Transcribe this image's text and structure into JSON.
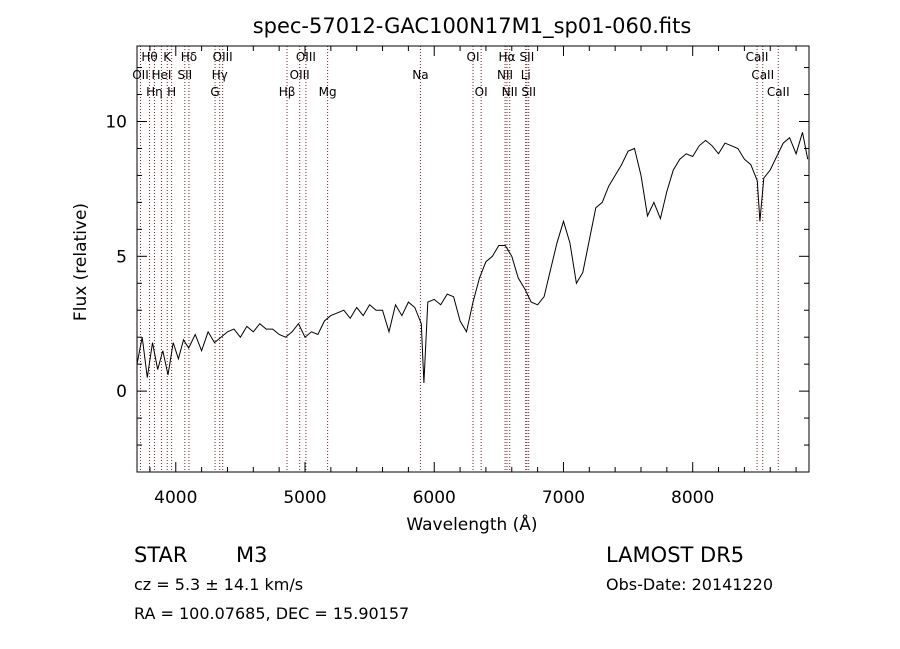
{
  "chart_data": {
    "type": "line",
    "title": "spec-57012-GAC100N17M1_sp01-060.fits",
    "xlabel": "Wavelength (Å)",
    "ylabel": "Flux (relative)",
    "xlim": [
      3700,
      8900
    ],
    "ylim": [
      -3,
      12.8
    ],
    "xticks": [
      4000,
      5000,
      6000,
      7000,
      8000
    ],
    "xtick_labels": [
      "4000",
      "5000",
      "6000",
      "7000",
      "8000"
    ],
    "yticks": [
      0,
      5,
      10
    ],
    "ytick_labels": [
      "0",
      "5",
      "10"
    ],
    "grid": false,
    "series": [
      {
        "x": [
          3700,
          3740,
          3780,
          3820,
          3860,
          3900,
          3940,
          3980,
          4020,
          4060,
          4100,
          4150,
          4200,
          4250,
          4300,
          4350,
          4400,
          4450,
          4500,
          4550,
          4600,
          4650,
          4700,
          4750,
          4800,
          4850,
          4900,
          4950,
          5000,
          5050,
          5100,
          5150,
          5200,
          5250,
          5300,
          5350,
          5400,
          5450,
          5500,
          5550,
          5600,
          5650,
          5700,
          5750,
          5800,
          5850,
          5900,
          5920,
          5950,
          6000,
          6050,
          6100,
          6150,
          6200,
          6250,
          6300,
          6350,
          6400,
          6450,
          6500,
          6550,
          6600,
          6650,
          6700,
          6750,
          6800,
          6850,
          6900,
          6950,
          7000,
          7050,
          7100,
          7150,
          7200,
          7250,
          7300,
          7350,
          7400,
          7450,
          7500,
          7550,
          7600,
          7650,
          7700,
          7750,
          7800,
          7850,
          7900,
          7950,
          8000,
          8050,
          8100,
          8150,
          8200,
          8250,
          8300,
          8350,
          8400,
          8450,
          8500,
          8520,
          8550,
          8600,
          8650,
          8700,
          8750,
          8800,
          8850,
          8890
        ],
        "y": [
          1.0,
          2.0,
          0.5,
          1.8,
          0.8,
          1.5,
          0.6,
          1.8,
          1.2,
          1.9,
          1.6,
          2.1,
          1.5,
          2.2,
          1.8,
          2.0,
          2.2,
          2.3,
          2.0,
          2.4,
          2.2,
          2.5,
          2.3,
          2.3,
          2.1,
          2.0,
          2.2,
          2.5,
          2.0,
          2.2,
          2.1,
          2.6,
          2.8,
          2.9,
          3.0,
          2.7,
          3.1,
          2.8,
          3.2,
          3.0,
          3.0,
          2.2,
          3.2,
          2.8,
          3.3,
          3.1,
          2.5,
          0.3,
          3.3,
          3.4,
          3.2,
          3.6,
          3.5,
          2.6,
          2.2,
          3.3,
          4.2,
          4.8,
          5.0,
          5.4,
          5.4,
          5.0,
          4.2,
          3.8,
          3.3,
          3.2,
          3.5,
          4.5,
          5.5,
          6.3,
          5.5,
          4.0,
          4.4,
          5.6,
          6.8,
          7.0,
          7.6,
          8.0,
          8.4,
          8.9,
          9.0,
          8.0,
          6.5,
          7.0,
          6.4,
          7.4,
          8.2,
          8.6,
          8.8,
          8.7,
          9.1,
          9.3,
          9.1,
          8.8,
          9.2,
          9.1,
          9.0,
          8.6,
          8.4,
          7.8,
          6.3,
          7.9,
          8.2,
          8.7,
          9.2,
          9.4,
          8.8,
          9.6,
          8.6
        ]
      }
    ],
    "lines": [
      {
        "label": "OII",
        "x": 3727,
        "row": 2
      },
      {
        "label": "Hθ",
        "x": 3797,
        "row": 1
      },
      {
        "label": "Hη",
        "x": 3835,
        "row": 3
      },
      {
        "label": "HeI",
        "x": 3889,
        "row": 2
      },
      {
        "label": "K",
        "x": 3934,
        "row": 1
      },
      {
        "label": "H",
        "x": 3968,
        "row": 3
      },
      {
        "label": "Hδ",
        "x": 4102,
        "row": 1
      },
      {
        "label": "SII",
        "x": 4070,
        "row": 2
      },
      {
        "label": "OIII",
        "x": 4363,
        "row": 1
      },
      {
        "label": "Hγ",
        "x": 4340,
        "row": 2
      },
      {
        "label": "G",
        "x": 4304,
        "row": 3
      },
      {
        "label": "Hβ",
        "x": 4861,
        "row": 3
      },
      {
        "label": "OIII",
        "x": 5007,
        "row": 1
      },
      {
        "label": "OIII",
        "x": 4959,
        "row": 2
      },
      {
        "label": "Mg",
        "x": 5175,
        "row": 3
      },
      {
        "label": "Na",
        "x": 5893,
        "row": 2
      },
      {
        "label": "OI",
        "x": 6300,
        "row": 1
      },
      {
        "label": "OI",
        "x": 6363,
        "row": 3
      },
      {
        "label": "Hα",
        "x": 6563,
        "row": 1
      },
      {
        "label": "NII",
        "x": 6548,
        "row": 2
      },
      {
        "label": "NII",
        "x": 6584,
        "row": 3
      },
      {
        "label": "SII",
        "x": 6717,
        "row": 1
      },
      {
        "label": "Li",
        "x": 6708,
        "row": 2
      },
      {
        "label": "SII",
        "x": 6731,
        "row": 3
      },
      {
        "label": "CaII",
        "x": 8498,
        "row": 1
      },
      {
        "label": "CaII",
        "x": 8542,
        "row": 2
      },
      {
        "label": "CaII",
        "x": 8662,
        "row": 3
      }
    ]
  },
  "info": {
    "class": "STAR",
    "subclass": "M3",
    "survey": "LAMOST DR5",
    "cz": "cz = 5.3 ± 14.1 km/s",
    "obs_date": "Obs-Date: 20141220",
    "coords": "RA = 100.07685, DEC =  15.90157"
  },
  "colors": {
    "spectrum": "#000000",
    "line_markers": "#8b1a1a",
    "axes": "#000000"
  }
}
